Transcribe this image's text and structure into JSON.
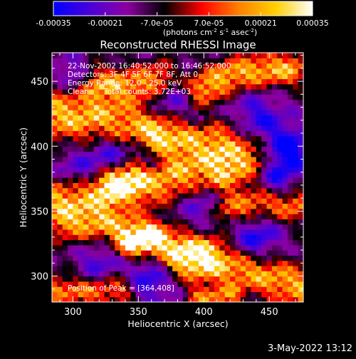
{
  "colorbar": {
    "tick_labels": [
      "-0.00035",
      "-0.00021",
      "-7.0e-05",
      "7.0e-05",
      "0.00021",
      "0.00035"
    ],
    "tick_values": [
      -0.00035,
      -0.00021,
      -7e-05,
      7e-05,
      0.00021,
      0.00035
    ],
    "range": [
      -0.00035,
      0.00035
    ],
    "unit_label": "(photons cm",
    "unit_exp1": "-2",
    "unit_mid": " s",
    "unit_exp2": "-1",
    "unit_mid2": " asec",
    "unit_exp3": "-2",
    "unit_end": ")",
    "colors": [
      "#0000ff",
      "#4b00d8",
      "#8b00a0",
      "#000000",
      "#ff0000",
      "#ff8000",
      "#ffd000",
      "#ffffff"
    ]
  },
  "chart_data": {
    "type": "heatmap",
    "title": "Reconstructed RHESSI Image",
    "xlabel": "Heliocentric X (arcsec)",
    "ylabel": "Heliocentric Y (arcsec)",
    "xlim": [
      284,
      476
    ],
    "ylim": [
      280,
      472
    ],
    "x_ticks": [
      300,
      350,
      400,
      450
    ],
    "y_ticks": [
      300,
      350,
      400,
      450
    ],
    "x_tick_labels": [
      "300",
      "350",
      "400",
      "450"
    ],
    "y_tick_labels": [
      "300",
      "350",
      "400",
      "450"
    ],
    "annotations": {
      "time_range": "22-Nov-2002 16:40:52.000 to 16:46:52.000",
      "detectors": "Detectors: 3F 4F 5F 6F 7F 8F, Att 0",
      "energy": "Energy Range: 12.0 - 25.0 keV",
      "clean_label": "Clean",
      "total_counts": "Total counts: 3.72E+03",
      "peak": "Position of Peak = [364,408]"
    },
    "peak": [
      364,
      408
    ],
    "bright_ridges": [
      {
        "points": [
          [
            290,
            425
          ],
          [
            325,
            420
          ],
          [
            355,
            412
          ],
          [
            380,
            405
          ],
          [
            400,
            405
          ],
          [
            420,
            398
          ],
          [
            430,
            392
          ]
        ],
        "width": 14,
        "value": 0.000315
      },
      {
        "points": [
          [
            320,
            448
          ],
          [
            350,
            448
          ],
          [
            365,
            452
          ]
        ],
        "width": 9,
        "value": 0.00024
      },
      {
        "points": [
          [
            400,
            445
          ],
          [
            420,
            455
          ],
          [
            440,
            458
          ],
          [
            465,
            460
          ]
        ],
        "width": 9,
        "value": 0.0003
      },
      {
        "points": [
          [
            290,
            362
          ],
          [
            320,
            362
          ],
          [
            350,
            368
          ],
          [
            380,
            375
          ],
          [
            410,
            378
          ]
        ],
        "width": 11,
        "value": 0.00028
      },
      {
        "points": [
          [
            330,
            372
          ],
          [
            345,
            378
          ]
        ],
        "width": 8,
        "value": 0.00033
      },
      {
        "points": [
          [
            420,
            352
          ],
          [
            445,
            356
          ],
          [
            470,
            355
          ]
        ],
        "width": 9,
        "value": 0.00022
      },
      {
        "points": [
          [
            295,
            342
          ],
          [
            325,
            340
          ],
          [
            350,
            332
          ],
          [
            375,
            322
          ],
          [
            400,
            318
          ]
        ],
        "width": 10,
        "value": 0.00025
      },
      {
        "points": [
          [
            345,
            325
          ],
          [
            360,
            330
          ]
        ],
        "width": 8,
        "value": 0.00032
      },
      {
        "points": [
          [
            385,
            312
          ],
          [
            415,
            308
          ],
          [
            440,
            302
          ],
          [
            465,
            295
          ],
          [
            476,
            290
          ]
        ],
        "width": 11,
        "value": 0.00028
      },
      {
        "points": [
          [
            285,
            290
          ],
          [
            310,
            288
          ],
          [
            335,
            290
          ]
        ],
        "width": 8,
        "value": 0.0002
      },
      {
        "points": [
          [
            395,
            283
          ],
          [
            420,
            285
          ]
        ],
        "width": 6,
        "value": 0.00018
      }
    ],
    "dark_patches": [
      {
        "c": [
          330,
          395
        ],
        "r": 14,
        "value": -0.00026
      },
      {
        "c": [
          375,
          432
        ],
        "r": 12,
        "value": -0.00022
      },
      {
        "c": [
          440,
          420
        ],
        "r": 15,
        "value": -0.00025
      },
      {
        "c": [
          465,
          398
        ],
        "r": 12,
        "value": -0.0003
      },
      {
        "c": [
          300,
          380
        ],
        "r": 12,
        "value": -0.0002
      },
      {
        "c": [
          355,
          392
        ],
        "r": 10,
        "value": -0.0002
      },
      {
        "c": [
          400,
          360
        ],
        "r": 14,
        "value": -0.00022
      },
      {
        "c": [
          455,
          375
        ],
        "r": 11,
        "value": -0.00025
      },
      {
        "c": [
          320,
          310
        ],
        "r": 12,
        "value": -0.0002
      },
      {
        "c": [
          360,
          300
        ],
        "r": 14,
        "value": -0.00025
      },
      {
        "c": [
          440,
          330
        ],
        "r": 13,
        "value": -0.00026
      },
      {
        "c": [
          300,
          455
        ],
        "r": 10,
        "value": -0.0002
      },
      {
        "c": [
          400,
          420
        ],
        "r": 8,
        "value": -0.00018
      }
    ]
  },
  "footer": {
    "date": "3-May-2022 13:12"
  }
}
